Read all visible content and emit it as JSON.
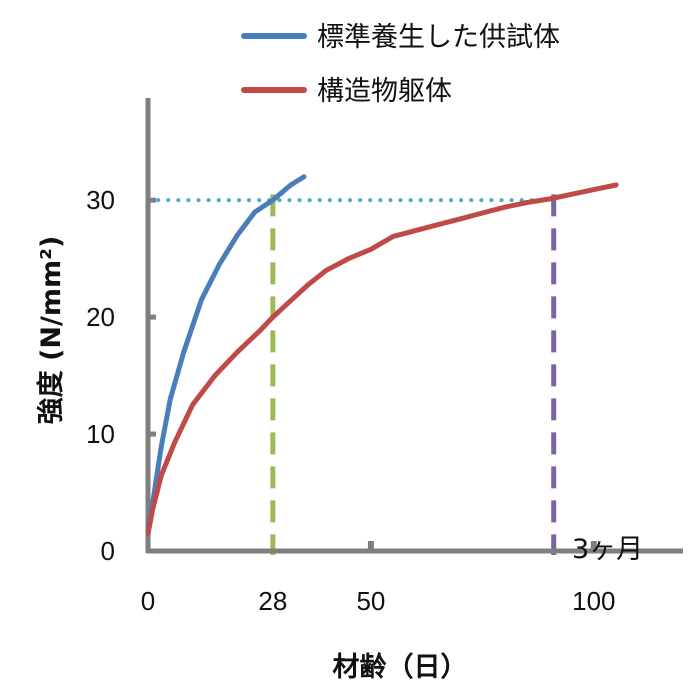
{
  "chart_data": {
    "type": "line",
    "xlabel": "材齢（日）",
    "ylabel": "強度 (N/mm²)",
    "xlim": [
      0,
      120
    ],
    "ylim": [
      0,
      36
    ],
    "x_ticks": [
      0,
      28,
      50,
      100
    ],
    "y_ticks": [
      0,
      10,
      20,
      30
    ],
    "grid": false,
    "legend_position": "top",
    "series": [
      {
        "name": "標準養生した供試体",
        "color": "#4a7ebb",
        "x": [
          0,
          1,
          2,
          3,
          5,
          8,
          12,
          16,
          20,
          24,
          28,
          32,
          35
        ],
        "y": [
          2,
          4,
          6.5,
          9,
          13,
          17,
          21.5,
          24.5,
          27,
          29,
          30,
          31.3,
          32
        ]
      },
      {
        "name": "構造物躯体",
        "color": "#be4b48",
        "x": [
          0,
          1,
          3,
          6,
          10,
          15,
          20,
          25,
          28,
          32,
          36,
          40,
          45,
          50,
          55,
          60,
          65,
          70,
          75,
          80,
          85,
          90,
          95,
          100,
          105
        ],
        "y": [
          1.5,
          3.5,
          6.5,
          9.3,
          12.5,
          15,
          17,
          18.8,
          20,
          21.4,
          22.8,
          24,
          25,
          25.8,
          26.9,
          27.4,
          27.9,
          28.4,
          28.9,
          29.4,
          29.8,
          30.1,
          30.5,
          30.9,
          31.3
        ]
      }
    ],
    "reference_lines": [
      {
        "orientation": "horizontal",
        "value": 30,
        "style": "dotted",
        "color": "#4bacc6"
      },
      {
        "orientation": "vertical",
        "value": 28,
        "style": "dashed",
        "color": "#9bbb59"
      },
      {
        "orientation": "vertical",
        "value": 91,
        "style": "dashed",
        "color": "#8064a2"
      }
    ],
    "annotations": [
      {
        "text": "3ヶ月",
        "x": 91
      }
    ],
    "axis_color": "#7f7f7f"
  }
}
